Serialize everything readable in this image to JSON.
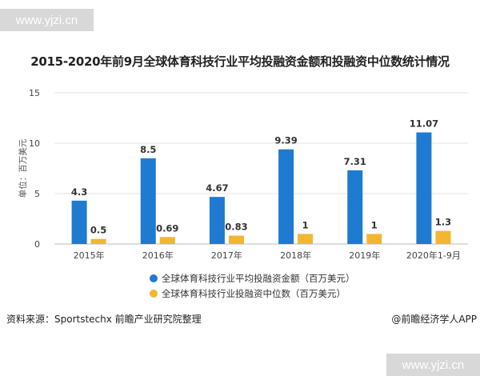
{
  "watermark": {
    "top_text": "www.yjzi.cn",
    "bottom_text": "www.yjzi.cn"
  },
  "chart_data": {
    "type": "bar",
    "title": "2015-2020年前9月全球体育科技行业平均投融资金额和投融资中位数统计情况",
    "ylabel": "单位：百万美元",
    "xlabel": "",
    "ylim": [
      0,
      15
    ],
    "yticks": [
      0,
      5,
      10,
      15
    ],
    "grid": true,
    "legend_position": "bottom",
    "categories": [
      "2015年",
      "2016年",
      "2017年",
      "2018年",
      "2019年",
      "2020年1-9月"
    ],
    "series": [
      {
        "name": "全球体育科技行业平均投融资金额（百万美元）",
        "color": "#1f7ad1",
        "values": [
          4.3,
          8.5,
          4.67,
          9.39,
          7.31,
          11.07
        ],
        "labels": [
          "4.3",
          "8.5",
          "4.67",
          "9.39",
          "7.31",
          "11.07"
        ]
      },
      {
        "name": "全球体育科技行业投融资中位数（百万美元）",
        "color": "#f2b631",
        "values": [
          0.5,
          0.69,
          0.83,
          1,
          1,
          1.3
        ],
        "labels": [
          "0.5",
          "0.69",
          "0.83",
          "1",
          "1",
          "1.3"
        ]
      }
    ]
  },
  "footer": {
    "source": "资料来源：Sportstechx 前瞻产业研究院整理",
    "brand": "@前瞻经济学人APP"
  }
}
